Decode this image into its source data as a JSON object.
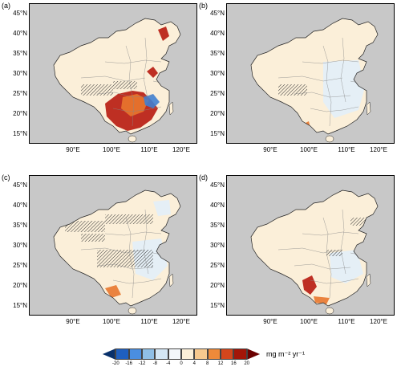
{
  "panels": [
    {
      "label": "(a)",
      "id": "a"
    },
    {
      "label": "(b)",
      "id": "b"
    },
    {
      "label": "(c)",
      "id": "c"
    },
    {
      "label": "(d)",
      "id": "d"
    }
  ],
  "lat_labels": [
    "45°N",
    "40°N",
    "35°N",
    "30°N",
    "25°N",
    "20°N",
    "15°N"
  ],
  "lon_labels": [
    "90°E",
    "100°E",
    "110°E",
    "120°E"
  ],
  "colorbar": {
    "ticks": [
      "-20",
      "-16",
      "-12",
      "-8",
      "-4",
      "0",
      "4",
      "8",
      "12",
      "16",
      "20"
    ],
    "colors": [
      "#08306b",
      "#1f5fbf",
      "#4a8ee0",
      "#8fbfe6",
      "#d4e7f5",
      "#f3f7fb",
      "#fbefd9",
      "#f7c98f",
      "#ee8a3a",
      "#d4461c",
      "#a31508",
      "#6b0000"
    ],
    "unit": "mg m⁻² yr⁻¹"
  },
  "colors": {
    "ocean": "#c8c8c8",
    "land_light": "#fbefd9",
    "land_blue": "#e2eef8",
    "red_dark": "#b71a0e",
    "orange": "#e8772d",
    "blue": "#3f7fd1"
  }
}
